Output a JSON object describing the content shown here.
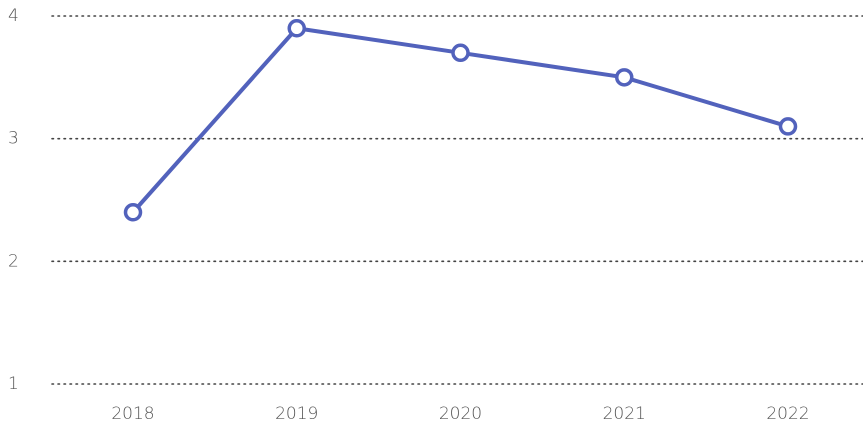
{
  "chart_data": {
    "type": "line",
    "categories": [
      "2018",
      "2019",
      "2020",
      "2021",
      "2022"
    ],
    "series": [
      {
        "name": "Series",
        "color": "#5262bc",
        "values": [
          2.4,
          3.9,
          3.7,
          3.5,
          3.1
        ]
      }
    ],
    "ylim": [
      1,
      4
    ],
    "yticks": [
      1,
      2,
      3,
      4
    ],
    "grid": true
  }
}
